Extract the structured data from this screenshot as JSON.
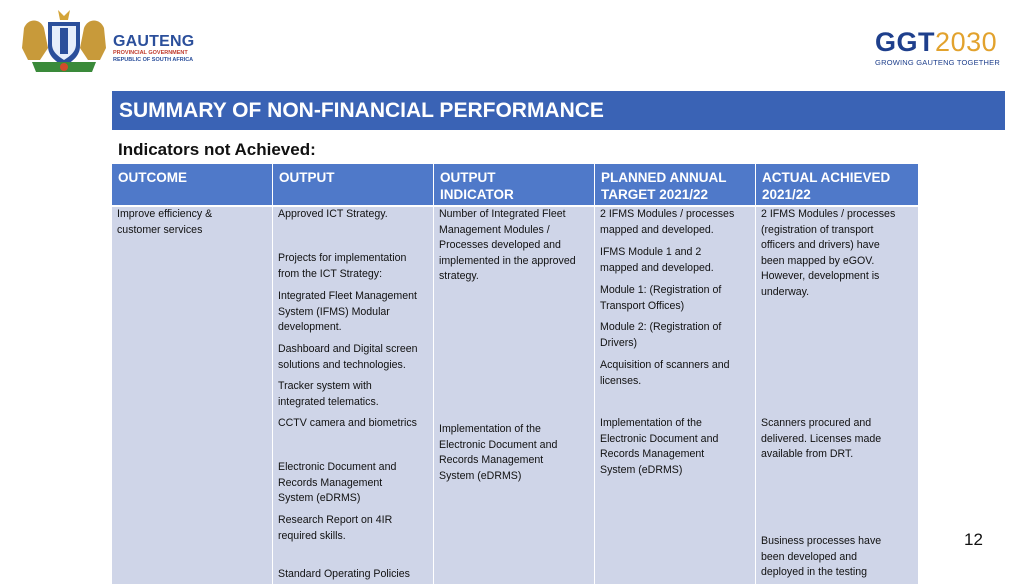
{
  "header": {
    "gauteng": {
      "name": "GAUTENG",
      "line1": "PROVINCIAL GOVERNMENT",
      "line2": "REPUBLIC OF SOUTH AFRICA"
    },
    "ggt": {
      "mark_main": "GGT",
      "mark_year": "2030",
      "tagline": "GROWING GAUTENG TOGETHER"
    }
  },
  "title": "SUMMARY OF NON-FINANCIAL PERFORMANCE",
  "subtitle": "Indicators not Achieved:",
  "table": {
    "headers": {
      "outcome": "OUTCOME",
      "output": "OUTPUT",
      "indicator_1": "OUTPUT",
      "indicator_2": "INDICATOR",
      "target_1": "PLANNED ANNUAL",
      "target_2": "TARGET 2021/22",
      "actual_1": "ACTUAL ACHIEVED",
      "actual_2": "2021/22"
    },
    "outcome": {
      "o1": "Improve efficiency &",
      "o2": "customer services"
    },
    "output": {
      "p1": "Approved ICT Strategy.",
      "p2a": "Projects for implementation",
      "p2b": "from the ICT Strategy:",
      "p3a": "Integrated Fleet Management",
      "p3b": "System (IFMS) Modular",
      "p3c": "development.",
      "p4a": "Dashboard and Digital screen",
      "p4b": "solutions and technologies.",
      "p5a": "Tracker system with",
      "p5b": "integrated telematics.",
      "p6": "CCTV camera and biometrics",
      "p7a": "Electronic Document and",
      "p7b": "Records Management",
      "p7c": "System (eDRMS)",
      "p8a": "Research Report on 4IR",
      "p8b": "required skills.",
      "p9": "Standard Operating Policies"
    },
    "indicator": {
      "i1": "Number of Integrated Fleet",
      "i2": "Management Modules /",
      "i3": "Processes developed and",
      "i4": "implemented in the approved",
      "i5": "strategy.",
      "j1": "Implementation of the",
      "j2": "Electronic Document and",
      "j3": "Records Management",
      "j4": "System (eDRMS)"
    },
    "target": {
      "a1": "2 IFMS Modules / processes",
      "a2": "mapped and developed.",
      "b1": "IFMS Module 1 and 2",
      "b2": "mapped and developed.",
      "c1": "Module 1: (Registration of",
      "c2": "Transport Offices)",
      "d1": "Module 2: (Registration of",
      "d2": "Drivers)",
      "e1": "Acquisition of scanners and",
      "e2": "licenses.",
      "f1": "Implementation of the",
      "f2": "Electronic Document and",
      "f3": "Records Management",
      "f4": "System (eDRMS)"
    },
    "actual": {
      "a1": "2 IFMS Modules / processes",
      "a2": "(registration of transport",
      "a3": "officers and drivers) have",
      "a4": "been mapped by eGOV.",
      "a5": "However, development is",
      "a6": "underway.",
      "b1": "Scanners procured and",
      "b2": "delivered. Licenses made",
      "b3": "available from DRT.",
      "c1": "Business processes have",
      "c2": "been developed and",
      "c3": "deployed in the testing"
    }
  },
  "page_number": "12"
}
